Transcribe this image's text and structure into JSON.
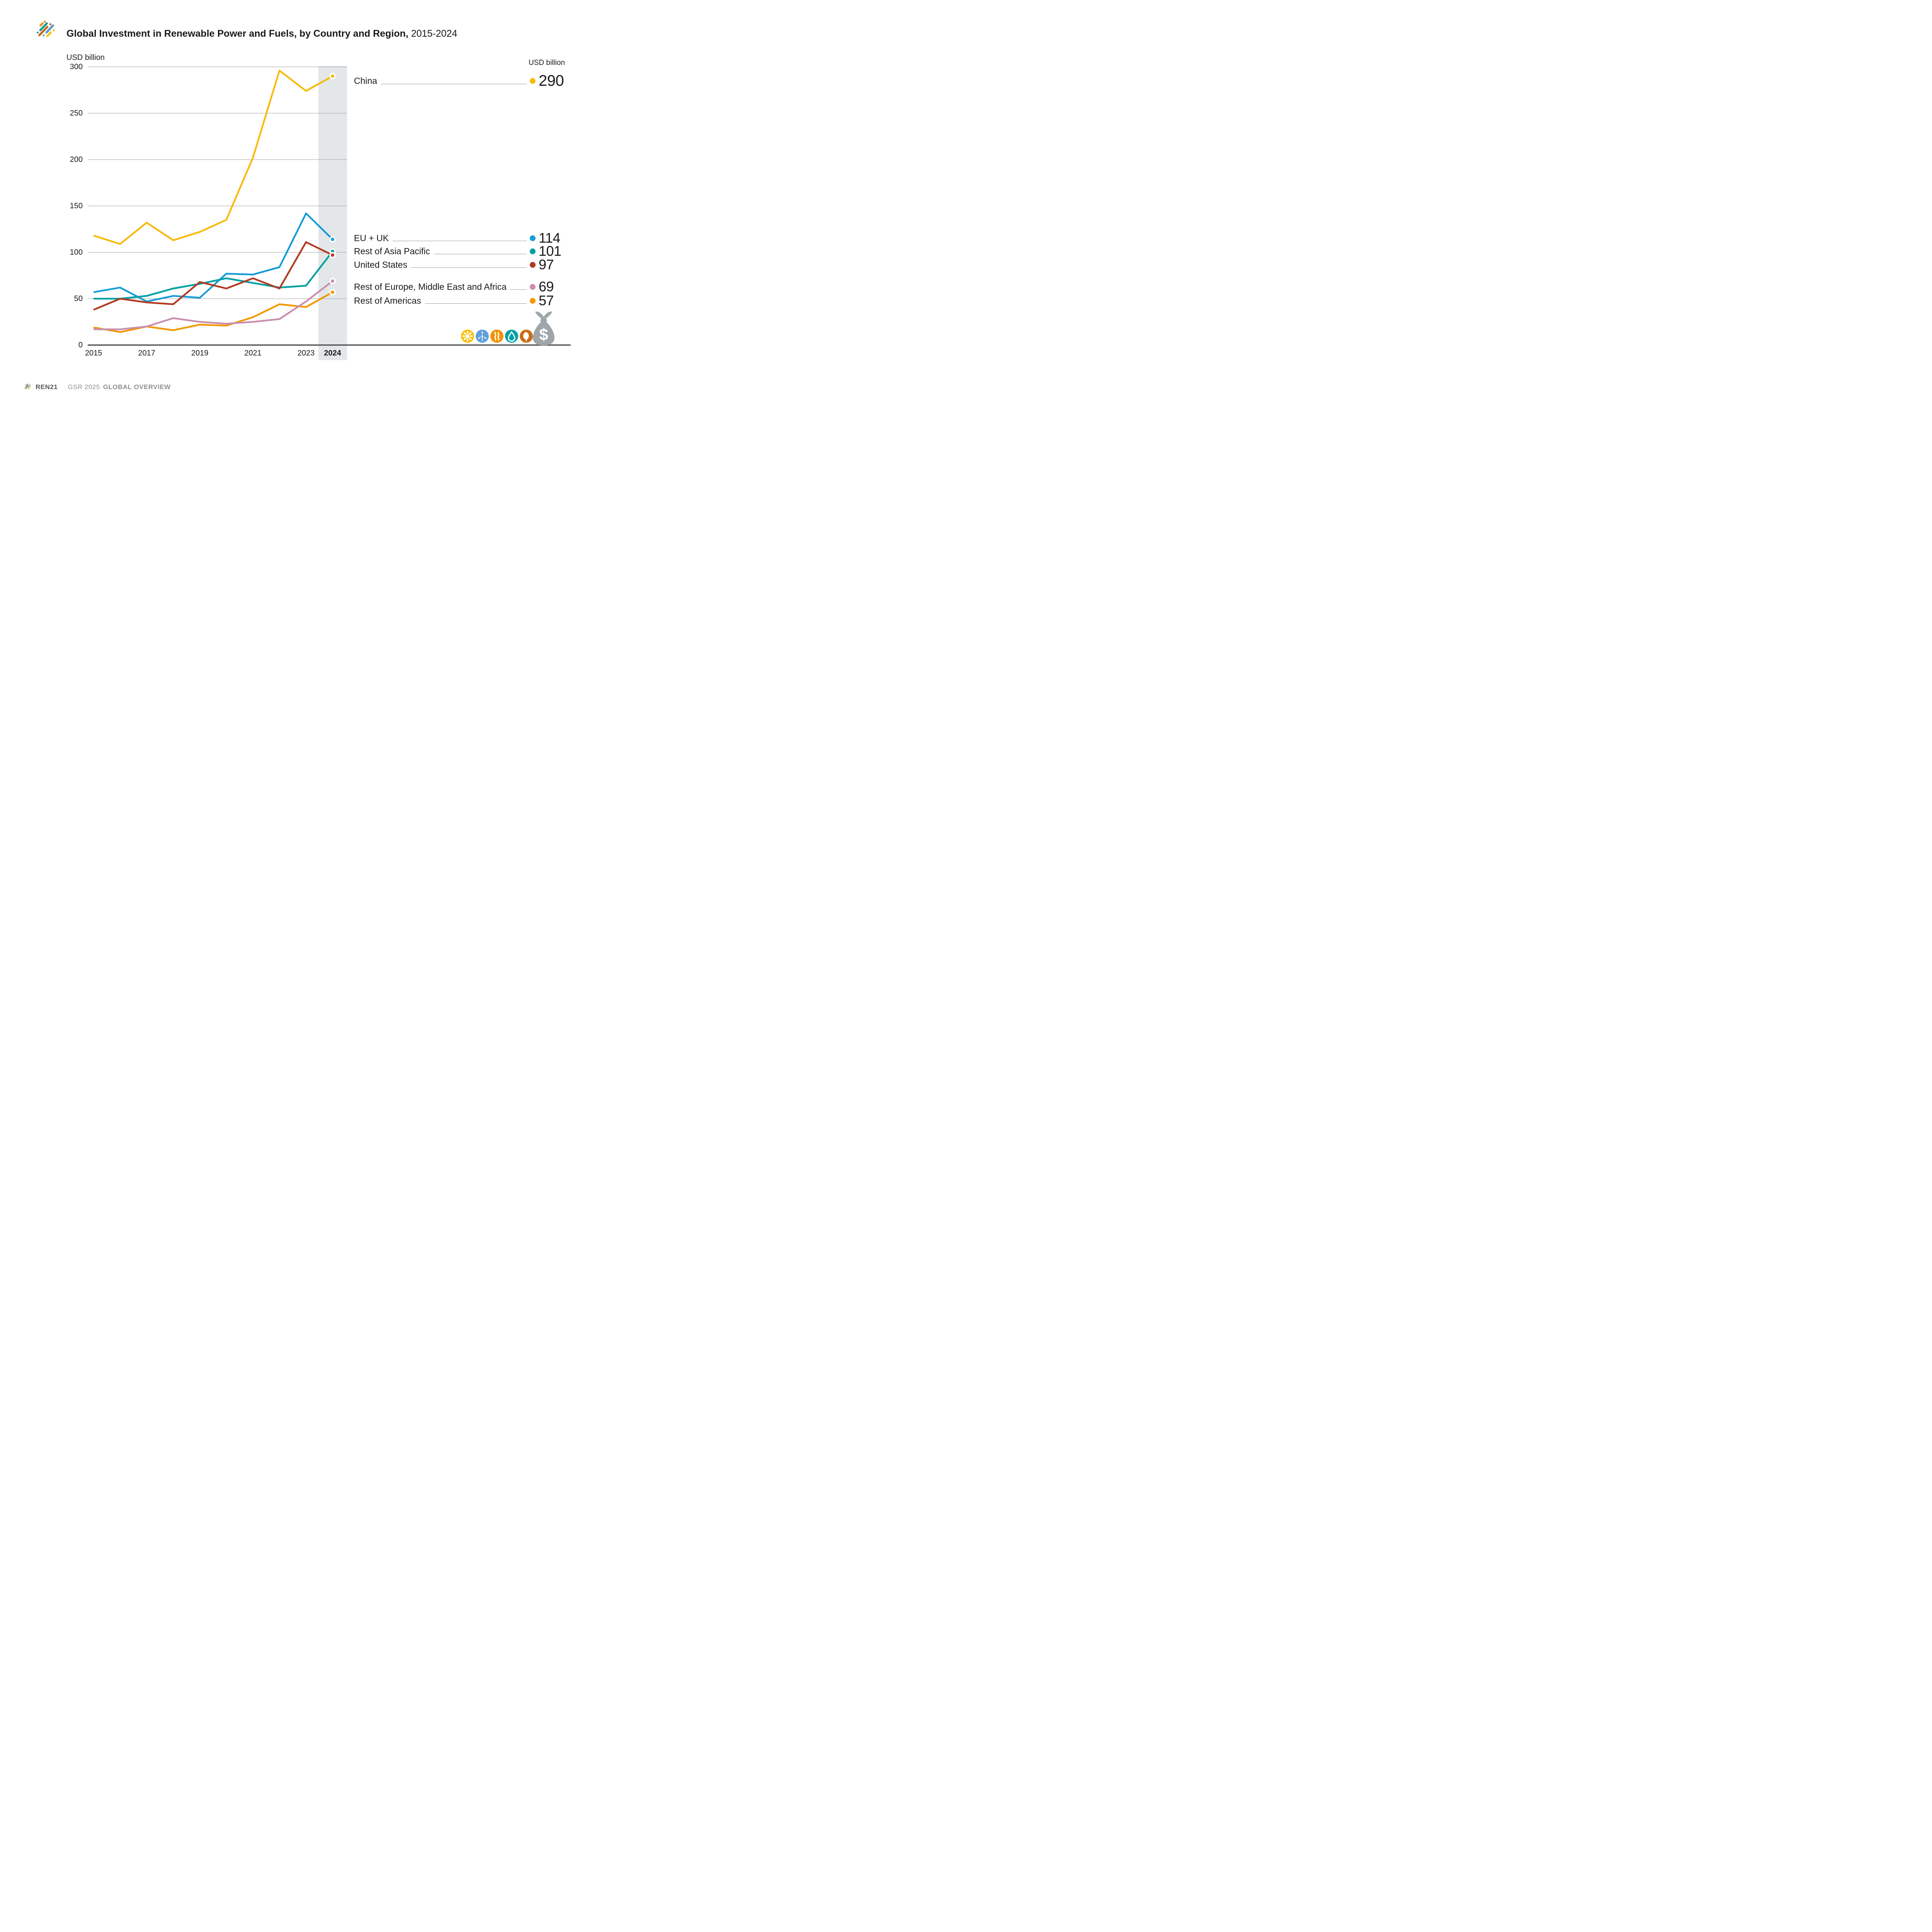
{
  "header": {
    "title_main": "Global Investment in Renewable Power and Fuels, by Country and Region,",
    "title_suffix": "2015-2024"
  },
  "axes": {
    "y_unit_label": "USD billion",
    "y_ticks": [
      300,
      250,
      200,
      150,
      100,
      50,
      0
    ],
    "x_ticks": [
      {
        "label": "2015",
        "year": 2015,
        "bold": false
      },
      {
        "label": "2017",
        "year": 2017,
        "bold": false
      },
      {
        "label": "2019",
        "year": 2019,
        "bold": false
      },
      {
        "label": "2021",
        "year": 2021,
        "bold": false
      },
      {
        "label": "2023",
        "year": 2023,
        "bold": false
      },
      {
        "label": "2024",
        "year": 2024,
        "bold": true
      }
    ]
  },
  "legend": {
    "unit_label": "USD billion",
    "rows": [
      {
        "label": "China",
        "value": "290",
        "series": "China",
        "big": true
      },
      {
        "label": "EU + UK",
        "value": "114",
        "series": "EU + UK",
        "big": false
      },
      {
        "label": "Rest of Asia Pacific",
        "value": "101",
        "series": "Rest of Asia Pacific",
        "big": false
      },
      {
        "label": "United States",
        "value": "97",
        "series": "United States",
        "big": false
      },
      {
        "label": "Rest of Europe, Middle East and Africa",
        "value": "69",
        "series": "Rest of Europe, Middle East and Africa",
        "big": false
      },
      {
        "label": "Rest of Americas",
        "value": "57",
        "series": "Rest of Americas",
        "big": false
      }
    ]
  },
  "chart_data": {
    "type": "line",
    "title": "Global Investment in Renewable Power and Fuels, by Country and Region, 2015-2024",
    "ylabel": "USD billion",
    "x": [
      2015,
      2016,
      2017,
      2018,
      2019,
      2020,
      2021,
      2022,
      2023,
      2024
    ],
    "ylim": [
      0,
      300
    ],
    "ytick_step": 50,
    "grid": true,
    "highlight_year": 2024,
    "series": [
      {
        "name": "China",
        "color": "#F8BA0D",
        "values": [
          118,
          109,
          132,
          113,
          122,
          135,
          202,
          296,
          274,
          290
        ]
      },
      {
        "name": "EU + UK",
        "color": "#159CD8",
        "values": [
          57,
          62,
          47,
          53,
          51,
          77,
          76,
          84,
          142,
          114
        ]
      },
      {
        "name": "Rest of Asia Pacific",
        "color": "#00A0A4",
        "values": [
          50,
          50,
          53,
          61,
          66,
          72,
          67,
          62,
          64,
          101
        ]
      },
      {
        "name": "United States",
        "color": "#B23A23",
        "values": [
          38,
          50,
          46,
          44,
          68,
          61,
          72,
          61,
          111,
          97
        ]
      },
      {
        "name": "Rest of Europe, Middle East and Africa",
        "color": "#C98FAE",
        "values": [
          17,
          17,
          20,
          29,
          25,
          23,
          25,
          28,
          47,
          69
        ]
      },
      {
        "name": "Rest of Americas",
        "color": "#F39800",
        "values": [
          19,
          14,
          20,
          16,
          22,
          21,
          30,
          44,
          41,
          57
        ]
      }
    ],
    "draw_order": [
      "Rest of Americas",
      "Rest of Europe, Middle East and Africa",
      "China",
      "EU + UK",
      "Rest of Asia Pacific",
      "United States"
    ]
  },
  "icons_row": {
    "dollar": "$",
    "icons": [
      {
        "name": "sun-icon",
        "color": "#F9BE00"
      },
      {
        "name": "wind-turbine-icon",
        "color": "#5FA0D8"
      },
      {
        "name": "geothermal-icon",
        "color": "#F29100"
      },
      {
        "name": "water-drop-icon",
        "color": "#00A0A5"
      },
      {
        "name": "leaf-icon",
        "color": "#C96F17"
      },
      {
        "name": "money-bag-icon",
        "color": "#9FA6A9"
      }
    ]
  },
  "footer": {
    "brand": "REN21",
    "report": "GSR 2025",
    "section": "GLOBAL OVERVIEW"
  }
}
